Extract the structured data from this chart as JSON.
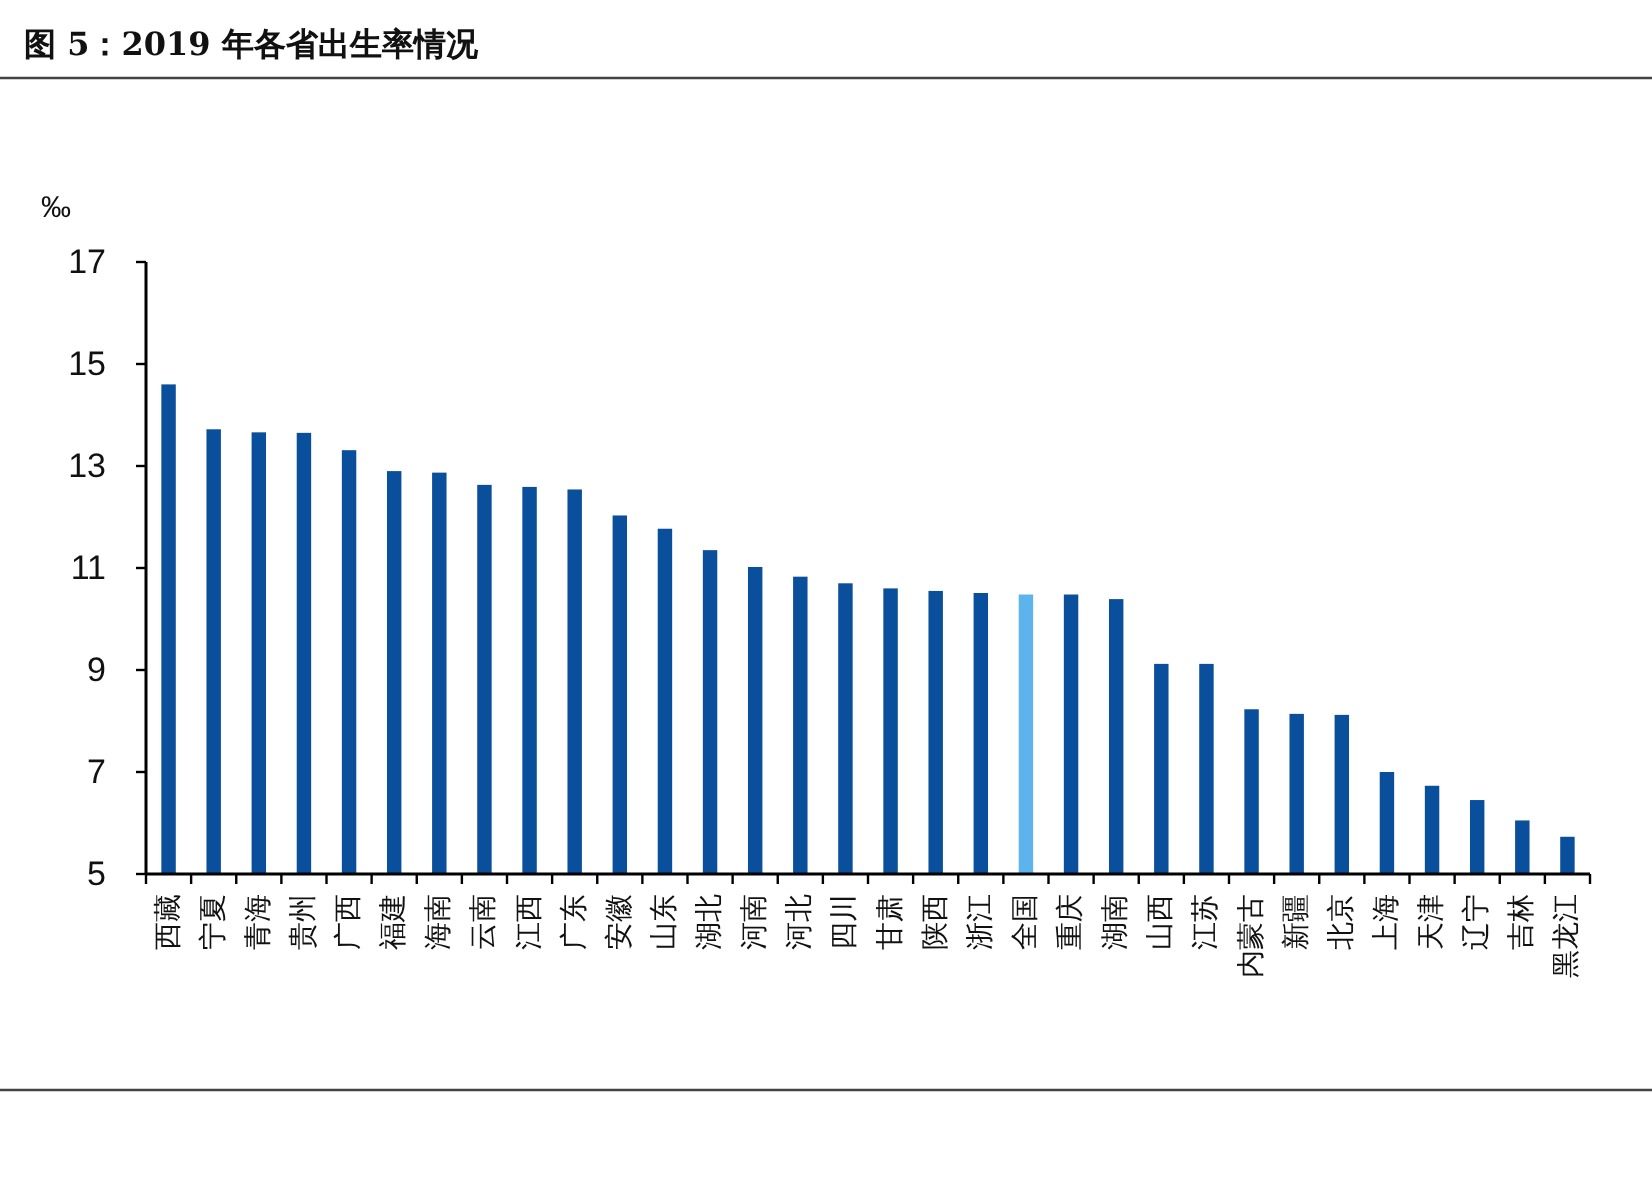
{
  "chart_data": {
    "type": "bar",
    "title": "图 5：2019 年各省出生率情况",
    "ylabel": "‰",
    "categories": [
      "西藏",
      "宁夏",
      "青海",
      "贵州",
      "广西",
      "福建",
      "海南",
      "云南",
      "江西",
      "广东",
      "安徽",
      "山东",
      "湖北",
      "河南",
      "河北",
      "四川",
      "甘肃",
      "陕西",
      "浙江",
      "全国",
      "重庆",
      "湖南",
      "山西",
      "江苏",
      "内蒙古",
      "新疆",
      "北京",
      "上海",
      "天津",
      "辽宁",
      "吉林",
      "黑龙江"
    ],
    "values": [
      14.6,
      13.72,
      13.66,
      13.65,
      13.31,
      12.9,
      12.87,
      12.63,
      12.59,
      12.54,
      12.03,
      11.77,
      11.35,
      11.02,
      10.83,
      10.7,
      10.6,
      10.55,
      10.51,
      10.48,
      10.48,
      10.39,
      9.12,
      9.12,
      8.23,
      8.14,
      8.12,
      7.0,
      6.73,
      6.45,
      6.05,
      5.73
    ],
    "colors": [
      "#0a4f9b",
      "#0a4f9b",
      "#0a4f9b",
      "#0a4f9b",
      "#0a4f9b",
      "#0a4f9b",
      "#0a4f9b",
      "#0a4f9b",
      "#0a4f9b",
      "#0a4f9b",
      "#0a4f9b",
      "#0a4f9b",
      "#0a4f9b",
      "#0a4f9b",
      "#0a4f9b",
      "#0a4f9b",
      "#0a4f9b",
      "#0a4f9b",
      "#0a4f9b",
      "#5db3ec",
      "#0a4f9b",
      "#0a4f9b",
      "#0a4f9b",
      "#0a4f9b",
      "#0a4f9b",
      "#0a4f9b",
      "#0a4f9b",
      "#0a4f9b",
      "#0a4f9b",
      "#0a4f9b",
      "#0a4f9b",
      "#0a4f9b"
    ],
    "ylim": [
      5,
      17
    ],
    "yticks": [
      5,
      7,
      9,
      11,
      13,
      15,
      17
    ]
  }
}
